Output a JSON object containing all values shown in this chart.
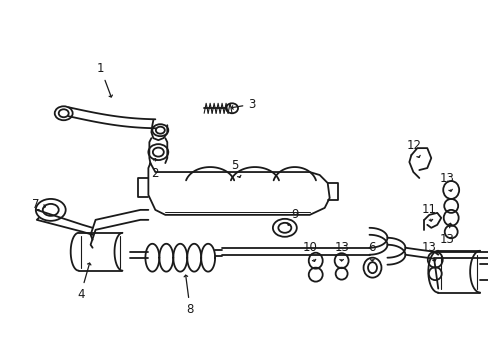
{
  "background_color": "#ffffff",
  "line_color": "#1a1a1a",
  "line_width": 1.3,
  "fig_width": 4.89,
  "fig_height": 3.6,
  "dpi": 100,
  "fontsize": 8.5
}
